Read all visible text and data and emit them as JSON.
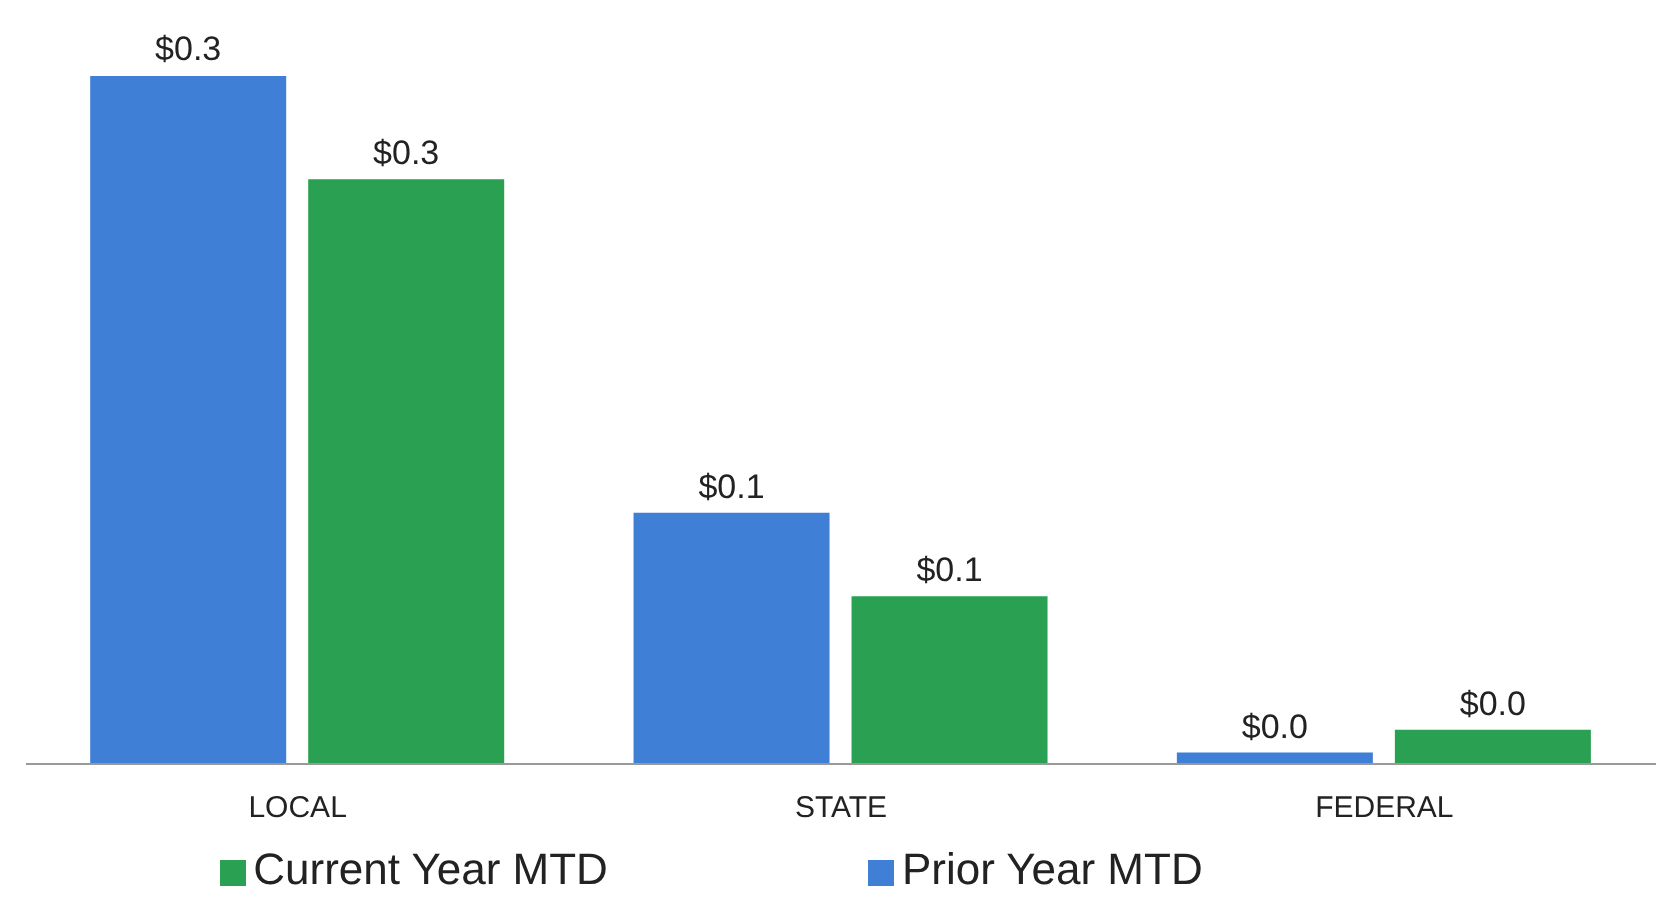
{
  "chart_data": {
    "type": "bar",
    "categories": [
      "LOCAL",
      "STATE",
      "FEDERAL"
    ],
    "series": [
      {
        "name": "Prior Year MTD",
        "color": "#3f7fd6",
        "values": [
          0.33,
          0.12,
          0.005
        ],
        "value_labels": [
          "$0.3",
          "$0.1",
          "$0.0"
        ]
      },
      {
        "name": "Current Year MTD",
        "color": "#2aa152",
        "values": [
          0.28,
          0.08,
          0.016
        ],
        "value_labels": [
          "$0.3",
          "$0.1",
          "$0.0"
        ]
      }
    ],
    "legend": "bottom"
  }
}
